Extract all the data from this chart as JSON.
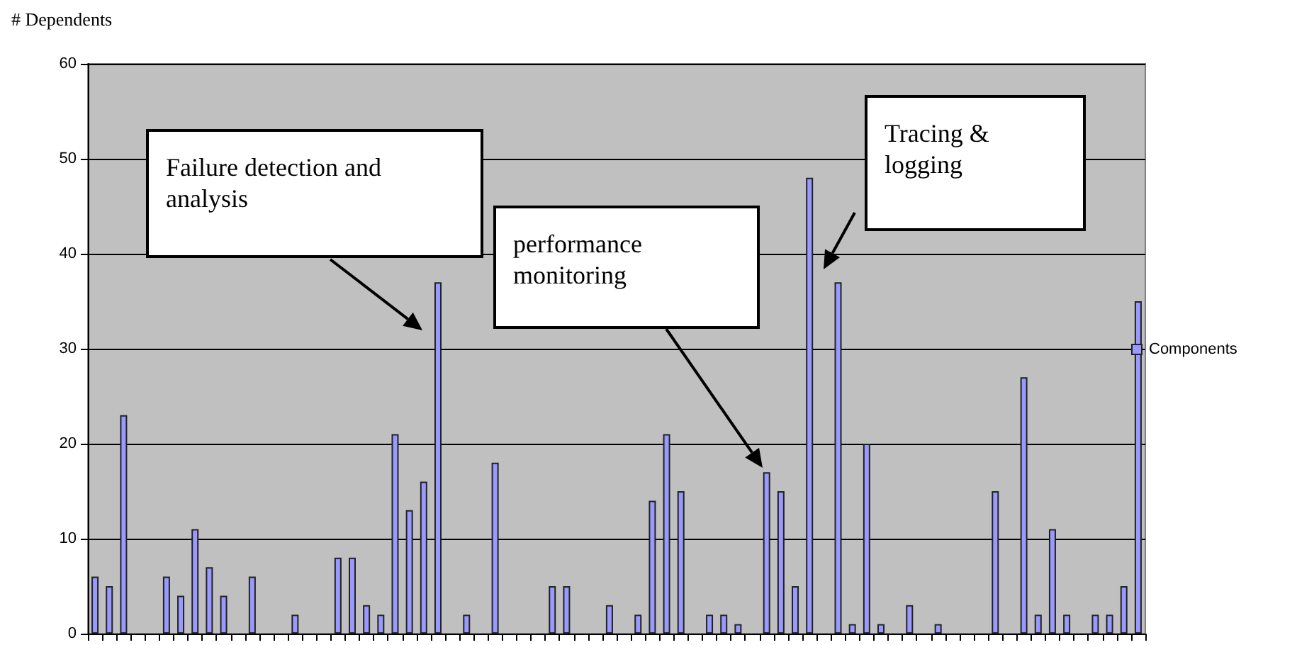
{
  "chart_data": {
    "type": "bar",
    "ylabel": "# Dependents",
    "categories": [
      null,
      null,
      null,
      null,
      null,
      null,
      null,
      null,
      null,
      null,
      null,
      null,
      null,
      null,
      null,
      null,
      null,
      null,
      null,
      null,
      null,
      null,
      null,
      null,
      null,
      null,
      null,
      null,
      null,
      null,
      null,
      null,
      null,
      null,
      null,
      null,
      null,
      null,
      null,
      null,
      null,
      null,
      null,
      null,
      null,
      null,
      null,
      null,
      null,
      null,
      null,
      null,
      null,
      null,
      null,
      null,
      null,
      null,
      null,
      null,
      null,
      null,
      null,
      null,
      null,
      null,
      null,
      null,
      null,
      null,
      null,
      null,
      null,
      null
    ],
    "series": [
      {
        "name": "Components",
        "color": "#9999ff",
        "values": [
          6,
          5,
          23,
          null,
          null,
          6,
          4,
          11,
          7,
          4,
          null,
          6,
          null,
          null,
          2,
          null,
          null,
          8,
          8,
          3,
          2,
          21,
          13,
          16,
          37,
          null,
          2,
          null,
          18,
          null,
          null,
          null,
          5,
          5,
          null,
          null,
          3,
          null,
          2,
          14,
          21,
          15,
          null,
          2,
          2,
          1,
          null,
          17,
          15,
          5,
          48,
          null,
          37,
          1,
          20,
          1,
          null,
          3,
          null,
          1,
          null,
          null,
          null,
          15,
          null,
          27,
          2,
          11,
          2,
          null,
          2,
          2,
          5,
          35
        ]
      }
    ],
    "ylim": [
      0,
      60
    ],
    "yticks": [
      0,
      10,
      20,
      30,
      40,
      50,
      60
    ],
    "grid": "y",
    "legend": "right",
    "annotations": [
      "Failure detection and analysis",
      "performance monitoring",
      "Tracing & logging"
    ]
  }
}
